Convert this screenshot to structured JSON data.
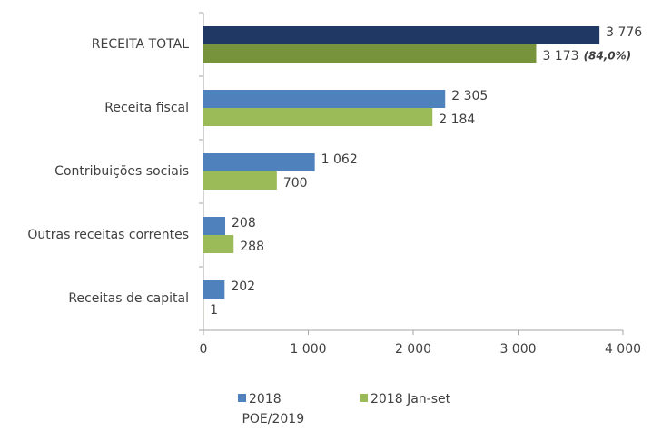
{
  "chart_data": {
    "type": "bar",
    "orientation": "horizontal",
    "categories": [
      "RECEITA TOTAL",
      "Receita fiscal",
      "Contribuições sociais",
      "Outras receitas correntes",
      "Receitas de capital"
    ],
    "series": [
      {
        "name": "2018 POE/2019",
        "color": "#4f81bd",
        "colors": [
          "#1f3864",
          "#4f81bd",
          "#4f81bd",
          "#4f81bd",
          "#4f81bd"
        ],
        "values": [
          3776,
          2305,
          1062,
          208,
          202
        ],
        "value_labels": [
          "3 776",
          "2 305",
          "1 062",
          "208",
          "202"
        ]
      },
      {
        "name": "2018 Jan-set",
        "color": "#9bbb59",
        "colors": [
          "#77933c",
          "#9bbb59",
          "#9bbb59",
          "#9bbb59",
          "#9bbb59"
        ],
        "values": [
          3173,
          2184,
          700,
          288,
          1
        ],
        "value_labels": [
          "3 173",
          "2 184",
          "700",
          "288",
          "1"
        ]
      }
    ],
    "annotation": "(84,0%)",
    "xlim": [
      0,
      4000
    ],
    "xticks": [
      0,
      {
        "value": 1000,
        "label": "1 000"
      },
      {
        "value": 2000,
        "label": "2 000"
      },
      {
        "value": 3000,
        "label": "3 000"
      },
      {
        "value": 4000,
        "label": "4 000"
      }
    ],
    "grid": false,
    "legend": "bottom"
  }
}
